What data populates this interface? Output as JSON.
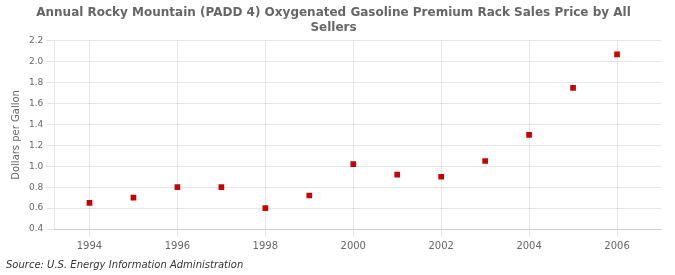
{
  "chart_data": {
    "type": "scatter",
    "title": "Annual Rocky Mountain (PADD 4) Oxygenated Gasoline Premium Rack Sales Price by All\nSellers",
    "ylabel": "Dollars per Gallon",
    "annotations": [
      "Source: U.S. Energy Information Administration"
    ],
    "x": [
      1994,
      1995,
      1996,
      1997,
      1998,
      1999,
      2000,
      2001,
      2002,
      2003,
      2004,
      2005,
      2006
    ],
    "values": [
      0.65,
      0.7,
      0.8,
      0.8,
      0.6,
      0.72,
      1.02,
      0.92,
      0.9,
      1.05,
      1.3,
      1.75,
      2.07
    ],
    "color": "#cc0000",
    "marker": "square",
    "xlim": [
      1993.2,
      2007.0
    ],
    "ylim": [
      0.4,
      2.2
    ],
    "xticks": [
      1994,
      1996,
      1998,
      2000,
      2002,
      2004,
      2006
    ],
    "yticks": [
      0.4,
      0.6,
      0.8,
      {
        "value": 1.0,
        "label": "1.0"
      },
      1.2,
      1.4,
      1.6,
      1.8,
      {
        "value": 2.0,
        "label": "2.0"
      },
      2.2
    ],
    "grid": true
  }
}
